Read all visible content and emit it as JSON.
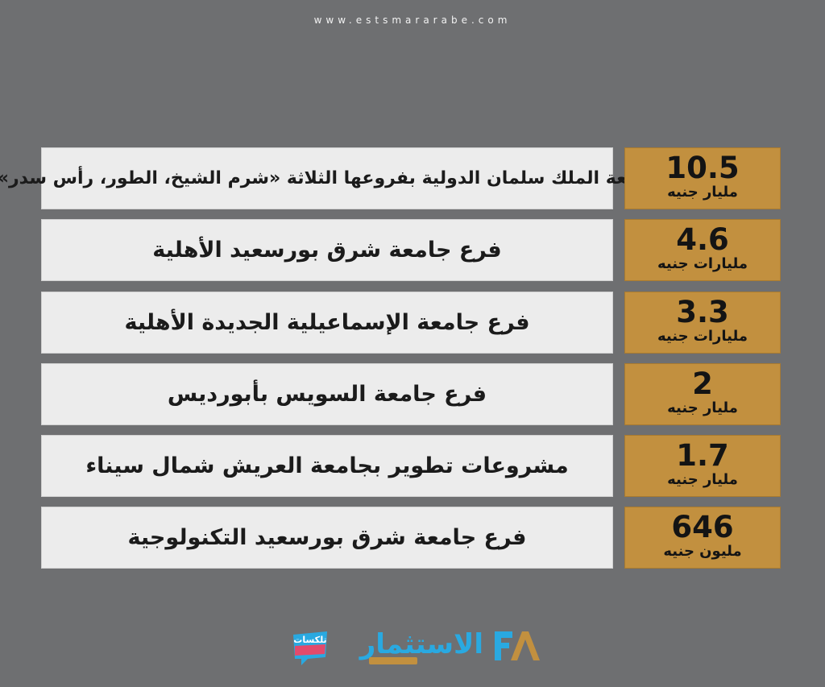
{
  "header": {
    "site_url": "www.estsmararabe.com"
  },
  "rows": [
    {
      "value": "10.5",
      "unit": "مليار جنيه",
      "label": "جامعة الملك سلمان الدولية بفروعها الثلاثة «شرم الشيخ، الطور، رأس سدر»"
    },
    {
      "value": "4.6",
      "unit": "مليارات جنيه",
      "label": "فرع جامعة شرق بورسعيد الأهلية"
    },
    {
      "value": "3.3",
      "unit": "مليارات جنيه",
      "label": "فرع جامعة الإسماعيلية الجديدة الأهلية"
    },
    {
      "value": "2",
      "unit": "مليار جنيه",
      "label": "فرع جامعة السويس بأبورديس"
    },
    {
      "value": "1.7",
      "unit": "مليار جنيه",
      "label": "مشروعات تطوير بجامعة العريش شمال سيناء"
    },
    {
      "value": "646",
      "unit": "مليون جنيه",
      "label": "فرع جامعة شرق بورسعيد التكنولوجية"
    }
  ],
  "logos": {
    "main": "الاستثمار",
    "small": "تلكسات",
    "fa": "FA"
  },
  "colors": {
    "background": "#6e6f71",
    "value_box": "#c2903f",
    "label_box": "#ececec",
    "brand_blue": "#29a9e1"
  }
}
